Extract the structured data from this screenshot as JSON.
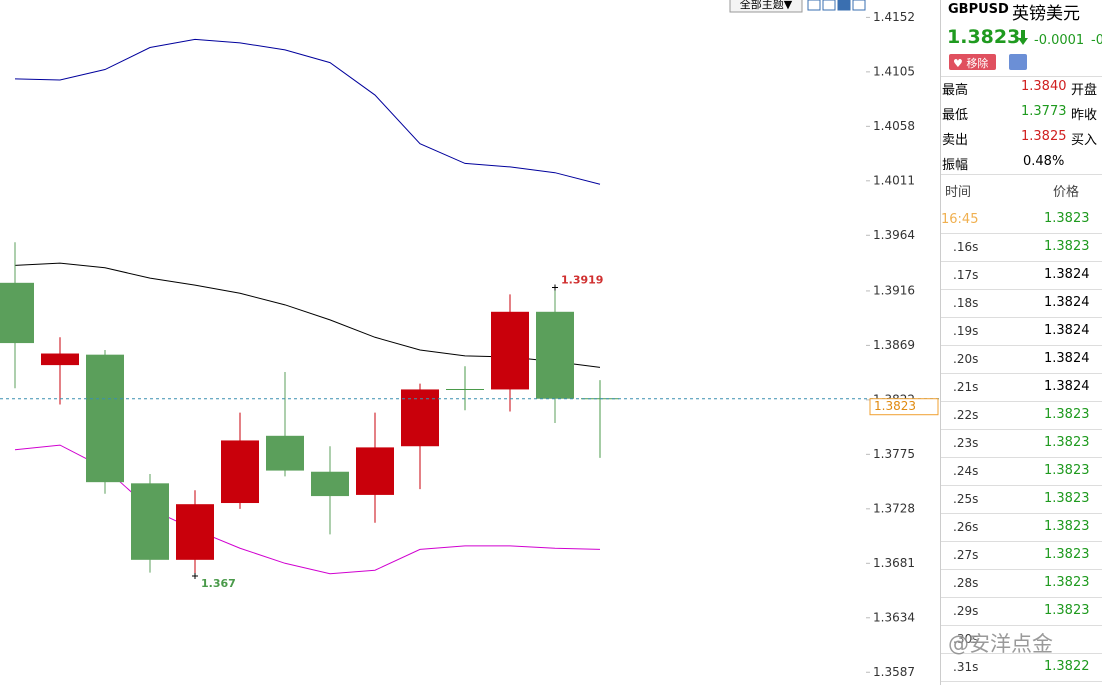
{
  "toolbar": {
    "theme_button": "全部主题▼"
  },
  "chart_data": {
    "type": "candlestick",
    "categories": [
      null,
      null,
      null,
      null,
      null,
      null,
      null,
      null,
      null,
      null,
      null,
      null,
      null,
      null
    ],
    "open": [
      1.3923,
      1.3852,
      1.3861,
      1.375,
      1.3684,
      1.3733,
      1.3791,
      1.376,
      1.374,
      1.3782,
      1.3831,
      1.3831,
      1.3898,
      1.3823
    ],
    "high": [
      1.3958,
      1.3876,
      1.3865,
      1.3758,
      1.3744,
      1.3811,
      1.3846,
      1.3782,
      1.3811,
      1.3836,
      1.3851,
      1.3913,
      1.3919,
      1.3839
    ],
    "low": [
      1.3832,
      1.3818,
      1.3741,
      1.3673,
      1.367,
      1.3728,
      1.3756,
      1.3706,
      1.3716,
      1.3745,
      1.3813,
      1.3812,
      1.3802,
      1.3772
    ],
    "close": [
      1.3871,
      1.3862,
      1.3751,
      1.3684,
      1.3732,
      1.3787,
      1.3761,
      1.3739,
      1.3781,
      1.3831,
      1.3831,
      1.3898,
      1.3823,
      1.3823
    ],
    "up_color": "#c9000b",
    "down_color": "#5b9f5b",
    "overlays": [
      {
        "color": "#00009c",
        "values": [
          1.4099,
          1.4098,
          1.4107,
          1.4126,
          1.4133,
          1.413,
          1.4124,
          1.4113,
          1.4085,
          1.4043,
          1.4026,
          1.4023,
          1.4018,
          1.4008
        ]
      },
      {
        "color": "#000000",
        "values": [
          1.3938,
          1.394,
          1.3936,
          1.3927,
          1.3921,
          1.3914,
          1.3904,
          1.3891,
          1.3876,
          1.3865,
          1.386,
          1.3859,
          1.3855,
          1.385
        ]
      },
      {
        "color": "#d000d0",
        "values": [
          1.3779,
          1.3783,
          1.3763,
          1.3728,
          1.371,
          1.3694,
          1.3681,
          1.3672,
          1.3675,
          1.3693,
          1.3696,
          1.3696,
          1.3694,
          1.3693
        ]
      }
    ],
    "ylim": [
      1.3576,
      1.4167
    ],
    "yticks": [
      1.4152,
      1.4105,
      1.4058,
      1.4011,
      1.3964,
      1.3916,
      1.3869,
      1.3822,
      1.3775,
      1.3728,
      1.3681,
      1.3634,
      1.3587
    ],
    "last_price": 1.3823,
    "annotations": [
      {
        "index": 12,
        "value": 1.3919,
        "color": "#d03030"
      },
      {
        "index": 4,
        "value": 1.367,
        "color": "#4a9a4a"
      }
    ]
  },
  "quote": {
    "symbol": "GBPUSD",
    "name": "英镑美元",
    "price": "1.3823",
    "change": "-0.0001",
    "change_pct": "-0",
    "remove_button": "移除",
    "stats": [
      [
        "最高",
        "1.3840",
        "开盘"
      ],
      [
        "最低",
        "1.3773",
        "昨收"
      ],
      [
        "卖出",
        "1.3825",
        "买入"
      ],
      [
        "振幅",
        "0.48%"
      ]
    ]
  },
  "ticks_table": {
    "header": [
      "时间",
      "价格"
    ],
    "rows": [
      [
        "16:45",
        "1.3823"
      ],
      [
        ".16s",
        "1.3823"
      ],
      [
        ".17s",
        "1.3824"
      ],
      [
        ".18s",
        "1.3824"
      ],
      [
        ".19s",
        "1.3824"
      ],
      [
        ".20s",
        "1.3824"
      ],
      [
        ".21s",
        "1.3824"
      ],
      [
        ".22s",
        "1.3823"
      ],
      [
        ".23s",
        "1.3823"
      ],
      [
        ".24s",
        "1.3823"
      ],
      [
        ".25s",
        "1.3823"
      ],
      [
        ".26s",
        "1.3823"
      ],
      [
        ".27s",
        "1.3823"
      ],
      [
        ".28s",
        "1.3823"
      ],
      [
        ".29s",
        "1.3823"
      ],
      [
        ".30s"
      ],
      [
        ".31s",
        "1.3822"
      ]
    ]
  },
  "watermark": "@安洋点金"
}
